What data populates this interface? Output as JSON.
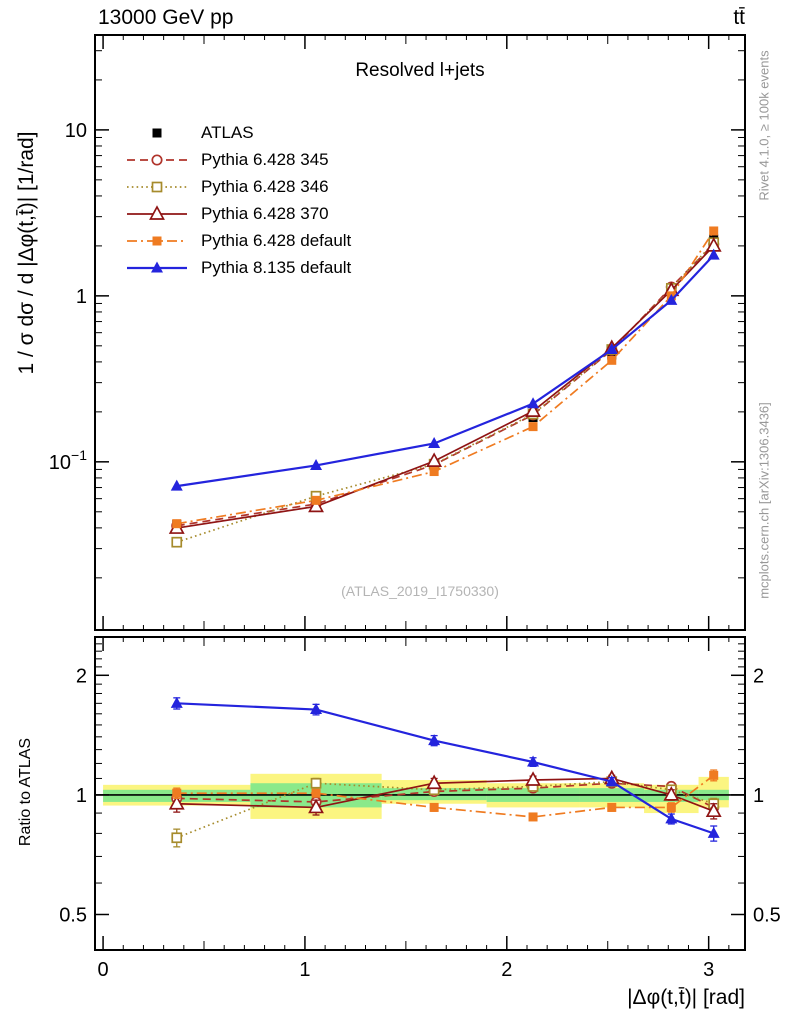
{
  "header": {
    "left": "13000 GeV pp",
    "right": "tt̄"
  },
  "panel_title": "Resolved l+jets",
  "watermark": "(ATLAS_2019_I1750330)",
  "credits": {
    "right_top": "Rivet 4.1.0, ≥ 100k events",
    "right_bottom": "mcplots.cern.ch [arXiv:1306.3436]"
  },
  "axes": {
    "main_ylabel": "1 / σ dσ / d |Δφ(t,t̄)| [1/rad]",
    "ratio_ylabel": "Ratio to ATLAS",
    "xlabel": "|Δφ(t,t̄)| [rad]",
    "main_yticks": [
      {
        "v": 10,
        "base": "10",
        "exp": ""
      },
      {
        "v": 1,
        "base": "1",
        "exp": ""
      },
      {
        "v": 0.1,
        "base": "10",
        "exp": "−1"
      }
    ],
    "ratio_yticks": [
      {
        "v": 2,
        "label": "2"
      },
      {
        "v": 1,
        "label": "1"
      },
      {
        "v": 0.5,
        "label": "0.5"
      }
    ],
    "xticks": [
      {
        "v": 0,
        "label": "0"
      },
      {
        "v": 1,
        "label": "1"
      },
      {
        "v": 2,
        "label": "2"
      },
      {
        "v": 3,
        "label": "3"
      }
    ]
  },
  "chart_data": {
    "type": "line",
    "xlim": [
      -0.04,
      3.18
    ],
    "ylim_main": [
      0.0097,
      37.3
    ],
    "ylim_ratio": [
      0.407,
      2.497
    ],
    "x": [
      0.365,
      1.055,
      1.64,
      2.13,
      2.52,
      2.815,
      3.025
    ],
    "bin_edges": [
      0,
      0.73,
      1.38,
      1.9,
      2.36,
      2.68,
      2.95,
      3.1
    ],
    "bands": {
      "yellow": [
        [
          0.94,
          1.06
        ],
        [
          0.87,
          1.13
        ],
        [
          0.95,
          1.09
        ],
        [
          0.93,
          1.07
        ],
        [
          0.93,
          1.07
        ],
        [
          0.9,
          1.06
        ],
        [
          0.93,
          1.11
        ]
      ],
      "green": [
        [
          0.96,
          1.03
        ],
        [
          0.93,
          1.07
        ],
        [
          0.97,
          1.04
        ],
        [
          0.96,
          1.04
        ],
        [
          0.96,
          1.04
        ],
        [
          0.96,
          1.03
        ],
        [
          0.97,
          1.03
        ]
      ],
      "yellow_color": "#fbf581",
      "green_color": "#8ae98a"
    },
    "series": [
      {
        "id": "atlas",
        "label": "ATLAS",
        "color": "#000000",
        "marker": "square-filled",
        "line": "none",
        "values": [
          0.042,
          0.058,
          0.094,
          0.185,
          0.44,
          1.08,
          2.2
        ],
        "err": [
          0.0015,
          0.0015,
          0.002,
          0.005,
          0.012,
          0.035,
          0.09
        ]
      },
      {
        "id": "p6_345",
        "label": "Pythia 6.428 345",
        "color": "#b0342b",
        "marker": "circle-open",
        "line": "dashed",
        "values": [
          0.0412,
          0.0557,
          0.0959,
          0.192,
          0.471,
          1.13,
          2.05
        ],
        "ratio": [
          0.98,
          0.96,
          1.02,
          1.04,
          1.07,
          1.05,
          0.93
        ],
        "ratio_err": [
          0.03,
          0.02,
          0.02,
          0.015,
          0.015,
          0.02,
          0.03
        ]
      },
      {
        "id": "p6_346",
        "label": "Pythia 6.428 346",
        "color": "#a68b2c",
        "marker": "square-open",
        "line": "dotted",
        "values": [
          0.0328,
          0.0621,
          0.0968,
          0.194,
          0.475,
          1.11,
          2.09
        ],
        "ratio": [
          0.78,
          1.07,
          1.03,
          1.05,
          1.08,
          1.03,
          0.95
        ],
        "ratio_err": [
          0.04,
          0.03,
          0.02,
          0.015,
          0.015,
          0.02,
          0.03
        ]
      },
      {
        "id": "p6_370",
        "label": "Pythia 6.428 370",
        "color": "#8f1414",
        "marker": "triangle-open",
        "line": "solid",
        "values": [
          0.0399,
          0.0539,
          0.101,
          0.202,
          0.484,
          1.08,
          2.0
        ],
        "ratio": [
          0.95,
          0.93,
          1.07,
          1.09,
          1.1,
          1.0,
          0.91
        ],
        "ratio_err": [
          0.045,
          0.04,
          0.03,
          0.025,
          0.02,
          0.03,
          0.04
        ]
      },
      {
        "id": "p6_default",
        "label": "Pythia 6.428 default",
        "color": "#ef7b21",
        "marker": "square-filled",
        "line": "dashdot",
        "values": [
          0.0424,
          0.0586,
          0.0874,
          0.163,
          0.409,
          1.0,
          2.46
        ],
        "ratio": [
          1.01,
          1.01,
          0.93,
          0.88,
          0.93,
          0.93,
          1.12
        ],
        "ratio_err": [
          0.03,
          0.02,
          0.02,
          0.015,
          0.02,
          0.025,
          0.035
        ]
      },
      {
        "id": "p8_default",
        "label": "Pythia 8.135 default",
        "color": "#2424dd",
        "marker": "triangle-filled",
        "line": "solid",
        "values": [
          0.0714,
          0.0951,
          0.129,
          0.224,
          0.475,
          0.94,
          1.76
        ],
        "ratio": [
          1.7,
          1.64,
          1.37,
          1.21,
          1.08,
          0.87,
          0.8
        ],
        "ratio_err": [
          0.055,
          0.05,
          0.04,
          0.03,
          0.025,
          0.025,
          0.035
        ]
      }
    ]
  }
}
